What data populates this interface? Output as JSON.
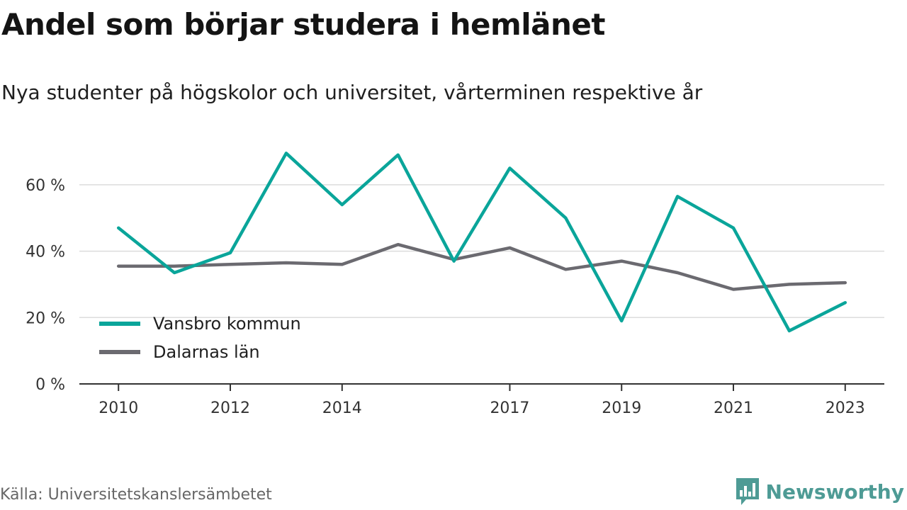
{
  "header": {
    "title": "Andel som börjar studera i hemlänet",
    "subtitle": "Nya studenter på högskolor och universitet, vårterminen respektive år"
  },
  "footer": {
    "source": "Källa: Universitetskanslersämbetet",
    "brand": "Newsworthy",
    "brand_icon": "bar-chart-speech-bubble-icon",
    "brand_color": "#4e9b95"
  },
  "chart_data": {
    "type": "line",
    "x": [
      2010,
      2011,
      2012,
      2013,
      2014,
      2015,
      2016,
      2017,
      2018,
      2019,
      2020,
      2021,
      2022,
      2023
    ],
    "x_tick_labels": [
      "2010",
      "2012",
      "2014",
      "2017",
      "2019",
      "2021",
      "2023"
    ],
    "xlim": [
      2009.3,
      2023.7
    ],
    "y_ticks": [
      0,
      20,
      40,
      60
    ],
    "y_tick_labels": [
      "0 %",
      "20 %",
      "40 %",
      "60 %"
    ],
    "ylim": [
      0,
      70
    ],
    "grid": true,
    "legend_position": "lower-left",
    "series": [
      {
        "name": "Vansbro kommun",
        "color": "#0aa59a",
        "values": [
          47,
          33.5,
          39.5,
          69.5,
          54,
          69,
          37,
          65,
          50,
          19,
          56.5,
          47,
          16,
          24.5
        ]
      },
      {
        "name": "Dalarnas län",
        "color": "#6b6a70",
        "values": [
          35.5,
          35.5,
          36,
          36.5,
          36,
          42,
          37.5,
          41,
          34.5,
          37,
          33.5,
          28.5,
          30,
          30.5
        ]
      }
    ]
  }
}
